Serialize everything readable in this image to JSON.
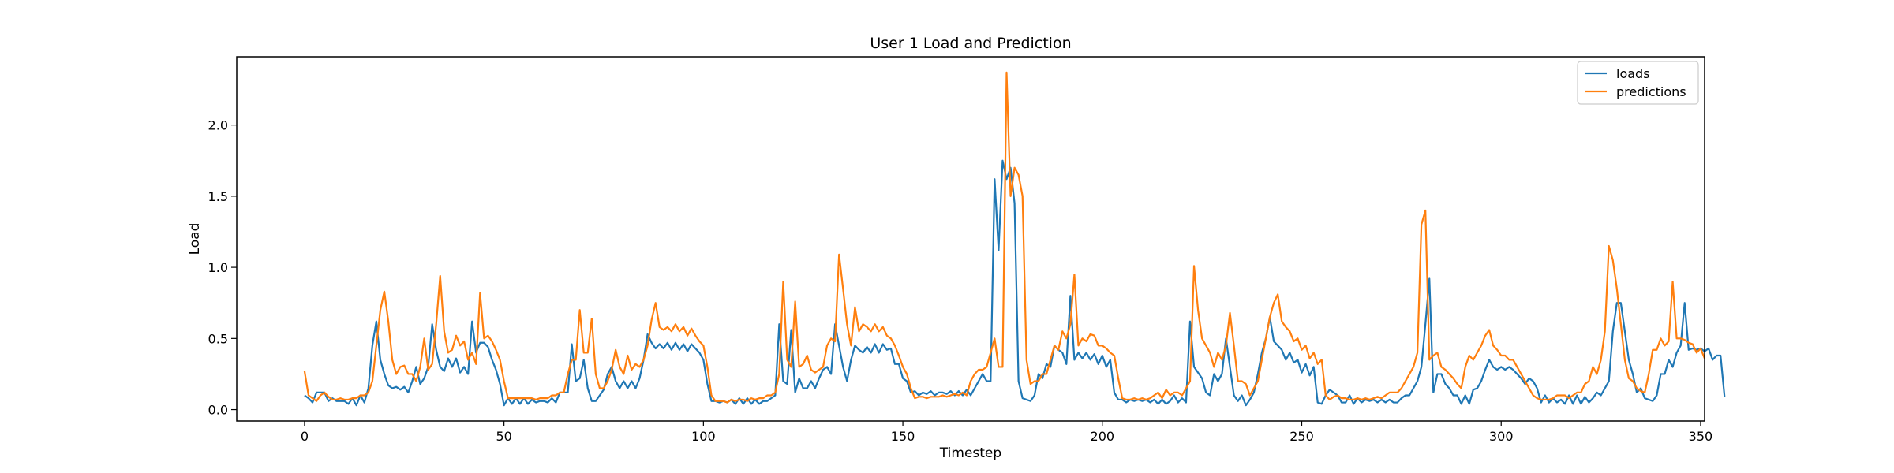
{
  "chart_data": {
    "type": "line",
    "title": "User 1 Load and Prediction",
    "xlabel": "Timestep",
    "ylabel": "Load",
    "xlim": [
      -17,
      351
    ],
    "ylim": [
      -0.08,
      2.48
    ],
    "xticks": [
      0,
      50,
      100,
      150,
      200,
      250,
      300,
      350
    ],
    "yticks": [
      0.0,
      0.5,
      1.0,
      1.5,
      2.0
    ],
    "xtick_labels": [
      "0",
      "50",
      "100",
      "150",
      "200",
      "250",
      "300",
      "350"
    ],
    "ytick_labels": [
      "0.0",
      "0.5",
      "1.0",
      "1.5",
      "2.0"
    ],
    "grid": false,
    "legend_position": "top-right",
    "series": [
      {
        "name": "loads",
        "color": "#1f77b4",
        "x_start": 0,
        "values": [
          0.1,
          0.08,
          0.05,
          0.12,
          0.12,
          0.12,
          0.06,
          0.08,
          0.06,
          0.06,
          0.06,
          0.04,
          0.08,
          0.03,
          0.1,
          0.05,
          0.15,
          0.45,
          0.62,
          0.35,
          0.25,
          0.17,
          0.15,
          0.16,
          0.14,
          0.16,
          0.12,
          0.2,
          0.3,
          0.18,
          0.22,
          0.3,
          0.6,
          0.42,
          0.3,
          0.27,
          0.36,
          0.3,
          0.36,
          0.26,
          0.3,
          0.25,
          0.62,
          0.4,
          0.47,
          0.47,
          0.44,
          0.35,
          0.28,
          0.18,
          0.03,
          0.08,
          0.04,
          0.08,
          0.04,
          0.08,
          0.04,
          0.07,
          0.05,
          0.06,
          0.06,
          0.05,
          0.08,
          0.05,
          0.12,
          0.12,
          0.12,
          0.46,
          0.2,
          0.22,
          0.35,
          0.15,
          0.06,
          0.06,
          0.1,
          0.14,
          0.25,
          0.3,
          0.2,
          0.15,
          0.2,
          0.15,
          0.2,
          0.15,
          0.22,
          0.35,
          0.53,
          0.47,
          0.43,
          0.46,
          0.43,
          0.47,
          0.42,
          0.47,
          0.42,
          0.46,
          0.41,
          0.46,
          0.43,
          0.4,
          0.35,
          0.18,
          0.06,
          0.06,
          0.05,
          0.06,
          0.05,
          0.07,
          0.04,
          0.08,
          0.04,
          0.08,
          0.04,
          0.07,
          0.04,
          0.06,
          0.06,
          0.08,
          0.1,
          0.6,
          0.2,
          0.18,
          0.56,
          0.12,
          0.22,
          0.15,
          0.15,
          0.2,
          0.15,
          0.22,
          0.28,
          0.3,
          0.25,
          0.6,
          0.45,
          0.3,
          0.2,
          0.35,
          0.45,
          0.42,
          0.4,
          0.44,
          0.4,
          0.46,
          0.4,
          0.46,
          0.42,
          0.43,
          0.32,
          0.32,
          0.22,
          0.2,
          0.12,
          0.13,
          0.1,
          0.12,
          0.11,
          0.13,
          0.1,
          0.12,
          0.12,
          0.11,
          0.13,
          0.1,
          0.13,
          0.1,
          0.14,
          0.1,
          0.15,
          0.2,
          0.25,
          0.2,
          0.2,
          1.62,
          1.12,
          1.75,
          1.62,
          1.7,
          1.45,
          0.2,
          0.08,
          0.07,
          0.06,
          0.1,
          0.25,
          0.22,
          0.32,
          0.3,
          0.45,
          0.42,
          0.4,
          0.32,
          0.8,
          0.35,
          0.4,
          0.36,
          0.4,
          0.35,
          0.39,
          0.32,
          0.38,
          0.3,
          0.35,
          0.12,
          0.07,
          0.07,
          0.05,
          0.07,
          0.06,
          0.07,
          0.06,
          0.07,
          0.05,
          0.07,
          0.04,
          0.07,
          0.04,
          0.06,
          0.1,
          0.05,
          0.08,
          0.05,
          0.62,
          0.3,
          0.26,
          0.22,
          0.12,
          0.1,
          0.25,
          0.2,
          0.25,
          0.5,
          0.3,
          0.1,
          0.06,
          0.1,
          0.03,
          0.07,
          0.12,
          0.25,
          0.4,
          0.5,
          0.65,
          0.48,
          0.45,
          0.42,
          0.35,
          0.4,
          0.33,
          0.35,
          0.26,
          0.32,
          0.24,
          0.3,
          0.05,
          0.04,
          0.1,
          0.14,
          0.12,
          0.1,
          0.05,
          0.05,
          0.1,
          0.04,
          0.08,
          0.05,
          0.07,
          0.06,
          0.07,
          0.05,
          0.07,
          0.05,
          0.07,
          0.05,
          0.05,
          0.08,
          0.1,
          0.1,
          0.15,
          0.2,
          0.3,
          0.6,
          0.92,
          0.12,
          0.25,
          0.25,
          0.18,
          0.15,
          0.1,
          0.1,
          0.04,
          0.1,
          0.04,
          0.14,
          0.15,
          0.2,
          0.28,
          0.35,
          0.3,
          0.28,
          0.3,
          0.28,
          0.3,
          0.28,
          0.25,
          0.22,
          0.18,
          0.22,
          0.2,
          0.15,
          0.05,
          0.1,
          0.05,
          0.08,
          0.05,
          0.07,
          0.04,
          0.1,
          0.04,
          0.1,
          0.04,
          0.09,
          0.05,
          0.08,
          0.12,
          0.1,
          0.15,
          0.2,
          0.55,
          0.75,
          0.75,
          0.55,
          0.35,
          0.25,
          0.12,
          0.15,
          0.08,
          0.07,
          0.06,
          0.1,
          0.25,
          0.25,
          0.35,
          0.3,
          0.4,
          0.45,
          0.75,
          0.42,
          0.43,
          0.42,
          0.43,
          0.41,
          0.43,
          0.35,
          0.38,
          0.38,
          0.09
        ]
      },
      {
        "name": "predictions",
        "color": "#ff7f0e",
        "x_start": 0,
        "values": [
          0.27,
          0.1,
          0.08,
          0.06,
          0.1,
          0.12,
          0.09,
          0.07,
          0.07,
          0.08,
          0.07,
          0.07,
          0.08,
          0.08,
          0.1,
          0.1,
          0.12,
          0.2,
          0.45,
          0.7,
          0.83,
          0.62,
          0.35,
          0.25,
          0.3,
          0.31,
          0.25,
          0.25,
          0.2,
          0.3,
          0.5,
          0.28,
          0.32,
          0.6,
          0.94,
          0.55,
          0.4,
          0.42,
          0.52,
          0.45,
          0.48,
          0.35,
          0.4,
          0.32,
          0.82,
          0.5,
          0.52,
          0.48,
          0.42,
          0.35,
          0.2,
          0.08,
          0.08,
          0.08,
          0.08,
          0.08,
          0.08,
          0.08,
          0.07,
          0.08,
          0.08,
          0.08,
          0.1,
          0.1,
          0.12,
          0.12,
          0.25,
          0.35,
          0.35,
          0.7,
          0.4,
          0.4,
          0.64,
          0.25,
          0.15,
          0.15,
          0.2,
          0.28,
          0.42,
          0.3,
          0.25,
          0.38,
          0.28,
          0.32,
          0.3,
          0.35,
          0.45,
          0.63,
          0.75,
          0.58,
          0.56,
          0.58,
          0.55,
          0.6,
          0.55,
          0.58,
          0.52,
          0.57,
          0.52,
          0.48,
          0.45,
          0.3,
          0.1,
          0.06,
          0.06,
          0.06,
          0.05,
          0.07,
          0.06,
          0.07,
          0.07,
          0.06,
          0.08,
          0.07,
          0.08,
          0.08,
          0.1,
          0.1,
          0.12,
          0.25,
          0.9,
          0.35,
          0.3,
          0.76,
          0.3,
          0.32,
          0.38,
          0.28,
          0.26,
          0.28,
          0.3,
          0.45,
          0.5,
          0.48,
          1.09,
          0.85,
          0.6,
          0.45,
          0.72,
          0.55,
          0.6,
          0.58,
          0.55,
          0.6,
          0.55,
          0.58,
          0.52,
          0.5,
          0.45,
          0.38,
          0.3,
          0.25,
          0.15,
          0.08,
          0.09,
          0.09,
          0.08,
          0.09,
          0.09,
          0.09,
          0.1,
          0.09,
          0.1,
          0.11,
          0.1,
          0.12,
          0.1,
          0.2,
          0.25,
          0.28,
          0.28,
          0.3,
          0.4,
          0.5,
          0.3,
          0.3,
          2.37,
          1.5,
          1.7,
          1.65,
          1.5,
          0.35,
          0.18,
          0.2,
          0.2,
          0.25,
          0.25,
          0.35,
          0.45,
          0.42,
          0.55,
          0.5,
          0.6,
          0.95,
          0.45,
          0.5,
          0.48,
          0.53,
          0.52,
          0.45,
          0.45,
          0.43,
          0.4,
          0.38,
          0.22,
          0.08,
          0.07,
          0.07,
          0.08,
          0.07,
          0.08,
          0.07,
          0.08,
          0.1,
          0.12,
          0.08,
          0.14,
          0.1,
          0.12,
          0.12,
          0.1,
          0.15,
          0.2,
          1.01,
          0.7,
          0.5,
          0.45,
          0.4,
          0.3,
          0.4,
          0.35,
          0.45,
          0.68,
          0.45,
          0.2,
          0.2,
          0.18,
          0.1,
          0.15,
          0.2,
          0.35,
          0.5,
          0.65,
          0.75,
          0.81,
          0.62,
          0.58,
          0.55,
          0.48,
          0.5,
          0.42,
          0.45,
          0.36,
          0.4,
          0.32,
          0.35,
          0.1,
          0.07,
          0.09,
          0.1,
          0.08,
          0.08,
          0.07,
          0.07,
          0.08,
          0.07,
          0.08,
          0.07,
          0.08,
          0.09,
          0.08,
          0.1,
          0.12,
          0.12,
          0.12,
          0.15,
          0.2,
          0.25,
          0.3,
          0.4,
          1.3,
          1.4,
          0.35,
          0.38,
          0.4,
          0.3,
          0.28,
          0.25,
          0.22,
          0.18,
          0.15,
          0.3,
          0.38,
          0.35,
          0.4,
          0.45,
          0.52,
          0.56,
          0.45,
          0.42,
          0.38,
          0.38,
          0.35,
          0.35,
          0.3,
          0.25,
          0.2,
          0.15,
          0.1,
          0.08,
          0.07,
          0.07,
          0.07,
          0.08,
          0.1,
          0.1,
          0.1,
          0.08,
          0.1,
          0.12,
          0.12,
          0.18,
          0.2,
          0.3,
          0.25,
          0.35,
          0.55,
          1.15,
          1.05,
          0.85,
          0.6,
          0.35,
          0.22,
          0.2,
          0.15,
          0.13,
          0.12,
          0.25,
          0.42,
          0.42,
          0.5,
          0.45,
          0.48,
          0.9,
          0.5,
          0.5,
          0.49,
          0.47,
          0.46,
          0.4,
          0.43,
          0.36
        ]
      }
    ]
  }
}
